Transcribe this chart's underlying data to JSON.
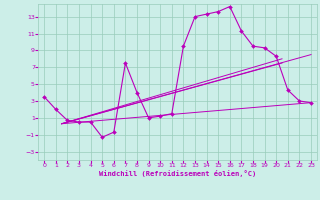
{
  "xlabel": "Windchill (Refroidissement éolien,°C)",
  "xlim": [
    -0.5,
    23.5
  ],
  "ylim": [
    -4,
    14.5
  ],
  "yticks": [
    -3,
    -1,
    1,
    3,
    5,
    7,
    9,
    11,
    13
  ],
  "xticks": [
    0,
    1,
    2,
    3,
    4,
    5,
    6,
    7,
    8,
    9,
    10,
    11,
    12,
    13,
    14,
    15,
    16,
    17,
    18,
    19,
    20,
    21,
    22,
    23
  ],
  "bg_color": "#cceee8",
  "grid_color": "#99ccbb",
  "line_color": "#bb00bb",
  "series1_x": [
    0,
    1,
    2,
    3,
    4,
    5,
    6,
    7,
    8,
    9,
    10,
    11,
    12,
    13,
    14,
    15,
    16,
    17,
    18,
    19,
    20,
    21,
    22,
    23
  ],
  "series1_y": [
    3.5,
    2.0,
    0.7,
    0.5,
    0.5,
    -1.3,
    -0.7,
    7.5,
    4.0,
    1.0,
    1.2,
    1.5,
    9.5,
    13.0,
    13.3,
    13.6,
    14.2,
    11.3,
    9.5,
    9.3,
    8.3,
    4.3,
    3.0,
    2.8
  ],
  "line1_x": [
    1.5,
    20.5
  ],
  "line1_y": [
    0.3,
    8.0
  ],
  "line2_x": [
    1.5,
    23
  ],
  "line2_y": [
    0.3,
    8.5
  ],
  "line3_x": [
    1.5,
    23
  ],
  "line3_y": [
    0.3,
    2.8
  ],
  "line4_x": [
    1.5,
    20.5
  ],
  "line4_y": [
    0.3,
    7.5
  ]
}
